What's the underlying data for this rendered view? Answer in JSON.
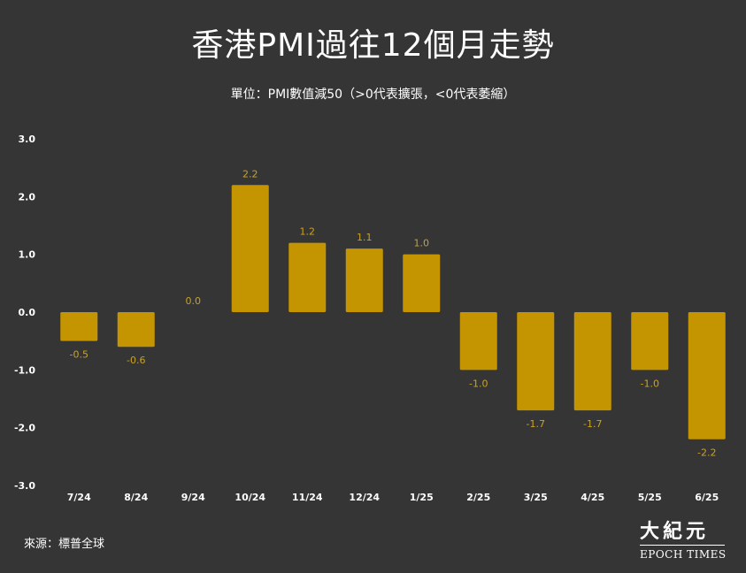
{
  "chart_data": {
    "type": "bar",
    "title": "香港PMI過往12個月走勢",
    "subtitle": "單位：PMI數值減50（>0代表擴張，<0代表萎縮）",
    "categories": [
      "7/24",
      "8/24",
      "9/24",
      "10/24",
      "11/24",
      "12/24",
      "1/25",
      "2/25",
      "3/25",
      "4/25",
      "5/25",
      "6/25"
    ],
    "values": [
      -0.5,
      -0.6,
      0.0,
      2.2,
      1.2,
      1.1,
      1.0,
      -1.0,
      -1.7,
      -1.7,
      -1.0,
      -2.2
    ],
    "value_labels": [
      "-0.5",
      "-0.6",
      "0.0",
      "2.2",
      "1.2",
      "1.1",
      "1.0",
      "-1.0",
      "-1.7",
      "-1.7",
      "-1.0",
      "-2.2"
    ],
    "y_ticks": [
      "3.0",
      "2.0",
      "1.0",
      "0.0",
      "-1.0",
      "-2.0",
      "-3.0"
    ],
    "ylim": [
      -3,
      3
    ],
    "grid": false,
    "legend": "none",
    "colors": {
      "bar": "#c49500",
      "background": "#353535",
      "text": "#ffffff",
      "value_label": "#c9a227"
    }
  },
  "footer": {
    "source": "來源：標普全球",
    "logo_cn": "大紀元",
    "logo_en": "EPOCH TIMES"
  }
}
